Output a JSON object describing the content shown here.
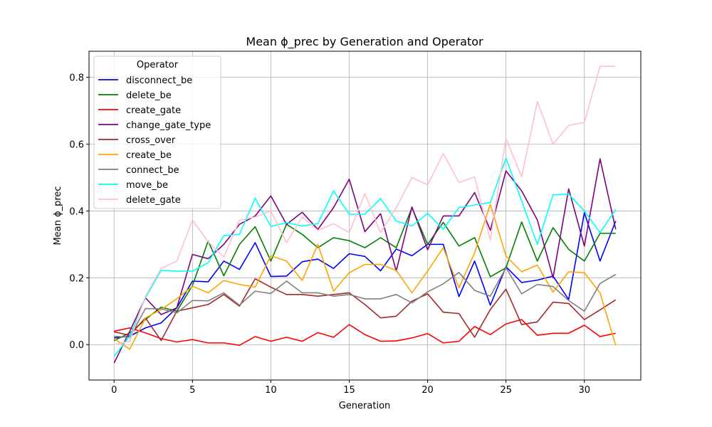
{
  "chart_data": {
    "type": "line",
    "title": "Mean ϕ_prec by Generation and Operator",
    "xlabel": "Generation",
    "ylabel": "Mean ϕ_prec",
    "xlim": [
      -1.6,
      33.6
    ],
    "ylim": [
      -0.106,
      0.878
    ],
    "xticks": [
      0,
      5,
      10,
      15,
      20,
      25,
      30
    ],
    "yticks": [
      0.0,
      0.2,
      0.4,
      0.6,
      0.8
    ],
    "ytick_labels": [
      "0.0",
      "0.2",
      "0.4",
      "0.6",
      "0.8"
    ],
    "grid": true,
    "legend_title": "Operator",
    "legend_position": "upper-left",
    "x": [
      0,
      1,
      2,
      3,
      4,
      5,
      6,
      7,
      8,
      9,
      10,
      11,
      12,
      13,
      14,
      15,
      16,
      17,
      18,
      19,
      20,
      21,
      22,
      23,
      24,
      25,
      26,
      27,
      28,
      29,
      30,
      31,
      32
    ],
    "series": [
      {
        "name": "disconnect_be",
        "color": "#0000ff",
        "values": [
          0.02,
          0.025,
          0.05,
          0.065,
          0.11,
          0.19,
          0.188,
          0.25,
          0.225,
          0.305,
          0.204,
          0.205,
          0.248,
          0.256,
          0.228,
          0.272,
          0.264,
          0.221,
          0.286,
          0.266,
          0.3,
          0.3,
          0.144,
          0.25,
          0.118,
          0.233,
          0.186,
          0.193,
          0.205,
          0.135,
          0.395,
          0.25,
          0.37
        ]
      },
      {
        "name": "delete_be",
        "color": "#008000",
        "values": [
          0.012,
          0.035,
          0.075,
          0.112,
          0.1,
          0.177,
          0.31,
          0.206,
          0.3,
          0.353,
          0.25,
          0.36,
          0.33,
          0.29,
          0.32,
          0.311,
          0.29,
          0.32,
          0.29,
          0.41,
          0.3,
          0.366,
          0.295,
          0.32,
          0.203,
          0.23,
          0.367,
          0.25,
          0.35,
          0.285,
          0.25,
          0.333,
          0.333
        ]
      },
      {
        "name": "create_gate",
        "color": "#ff0000",
        "values": [
          0.04,
          0.05,
          0.035,
          0.018,
          0.008,
          0.015,
          0.005,
          0.005,
          -0.002,
          0.024,
          0.01,
          0.022,
          0.01,
          0.036,
          0.022,
          0.06,
          0.03,
          0.01,
          0.011,
          0.02,
          0.033,
          0.005,
          0.01,
          0.054,
          0.03,
          0.062,
          0.075,
          0.028,
          0.034,
          0.034,
          0.058,
          0.024,
          0.034
        ]
      },
      {
        "name": "change_gate_type",
        "color": "#800080",
        "values": [
          -0.055,
          0.04,
          0.14,
          0.09,
          0.11,
          0.27,
          0.257,
          0.3,
          0.36,
          0.385,
          0.445,
          0.36,
          0.396,
          0.345,
          0.41,
          0.495,
          0.338,
          0.392,
          0.22,
          0.412,
          0.284,
          0.385,
          0.385,
          0.455,
          0.342,
          0.52,
          0.46,
          0.373,
          0.2,
          0.466,
          0.295,
          0.556,
          0.345
        ]
      },
      {
        "name": "cross_over",
        "color": "#a52a2a",
        "values": [
          0.038,
          0.028,
          0.08,
          0.012,
          0.1,
          0.11,
          0.12,
          0.15,
          0.115,
          0.197,
          0.172,
          0.15,
          0.15,
          0.145,
          0.15,
          0.155,
          0.12,
          0.08,
          0.085,
          0.13,
          0.152,
          0.097,
          0.093,
          0.022,
          0.105,
          0.166,
          0.06,
          0.068,
          0.127,
          0.123,
          0.075,
          0.104,
          0.134
        ]
      },
      {
        "name": "create_be",
        "color": "#ffa500",
        "values": [
          0.018,
          -0.014,
          0.08,
          0.105,
          0.137,
          0.175,
          0.155,
          0.192,
          0.18,
          0.172,
          0.266,
          0.25,
          0.192,
          0.3,
          0.16,
          0.215,
          0.24,
          0.24,
          0.222,
          0.155,
          0.22,
          0.29,
          0.17,
          0.275,
          0.42,
          0.265,
          0.218,
          0.238,
          0.157,
          0.218,
          0.215,
          0.155,
          -0.002
        ]
      },
      {
        "name": "connect_be",
        "color": "#808080",
        "values": [
          0.025,
          0.022,
          0.108,
          0.107,
          0.095,
          0.132,
          0.131,
          0.155,
          0.118,
          0.16,
          0.153,
          0.19,
          0.155,
          0.155,
          0.145,
          0.15,
          0.137,
          0.137,
          0.15,
          0.125,
          0.158,
          0.182,
          0.216,
          0.162,
          0.145,
          0.23,
          0.152,
          0.18,
          0.174,
          0.132,
          0.1,
          0.183,
          0.21
        ]
      },
      {
        "name": "move_be",
        "color": "#00ffff",
        "values": [
          -0.035,
          0.025,
          0.14,
          0.222,
          0.22,
          0.22,
          0.245,
          0.326,
          0.33,
          0.438,
          0.354,
          0.365,
          0.355,
          0.362,
          0.46,
          0.39,
          0.39,
          0.437,
          0.37,
          0.355,
          0.393,
          0.345,
          0.41,
          0.418,
          0.425,
          0.558,
          0.43,
          0.3,
          0.448,
          0.45,
          0.4,
          0.335,
          0.404
        ]
      },
      {
        "name": "delete_gate",
        "color": "#ffc0cb",
        "values": [
          0.0,
          0.01,
          0.145,
          0.228,
          0.25,
          0.373,
          0.308,
          0.262,
          0.372,
          0.382,
          0.4,
          0.305,
          0.382,
          0.342,
          0.362,
          0.335,
          0.452,
          0.335,
          0.41,
          0.5,
          0.478,
          0.572,
          0.485,
          0.502,
          0.312,
          0.617,
          0.502,
          0.728,
          0.6,
          0.656,
          0.665,
          0.833,
          0.833
        ]
      }
    ]
  }
}
